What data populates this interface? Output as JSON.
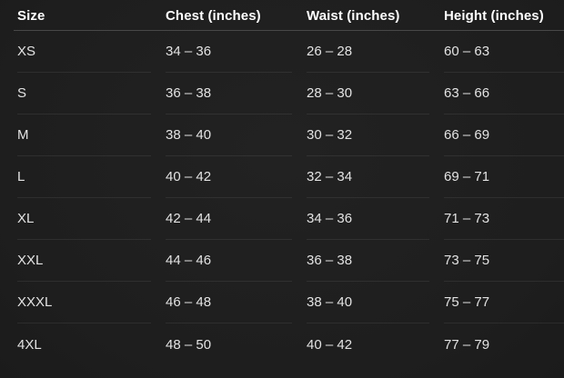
{
  "chart_data": {
    "type": "table",
    "columns": [
      "Size",
      "Chest (inches)",
      "Waist (inches)",
      "Height (inches)"
    ],
    "rows": [
      [
        "XS",
        "34 – 36",
        "26 – 28",
        "60 – 63"
      ],
      [
        "S",
        "36 – 38",
        "28 – 30",
        "63 – 66"
      ],
      [
        "M",
        "38 – 40",
        "30 – 32",
        "66 – 69"
      ],
      [
        "L",
        "40 – 42",
        "32 – 34",
        "69 – 71"
      ],
      [
        "XL",
        "42 – 44",
        "34 – 36",
        "71 – 73"
      ],
      [
        "XXL",
        "44 – 46",
        "36 – 38",
        "73 – 75"
      ],
      [
        "XXXL",
        "46 – 48",
        "38 – 40",
        "75 – 77"
      ],
      [
        "4XL",
        "48 – 50",
        "40 – 42",
        "77 – 79"
      ]
    ]
  },
  "colors": {
    "background": "#1f1f1f",
    "header_text": "#ffffff",
    "cell_text": "#e3e3e3",
    "header_separator": "#484848",
    "row_separator": "#2d2d2d"
  }
}
